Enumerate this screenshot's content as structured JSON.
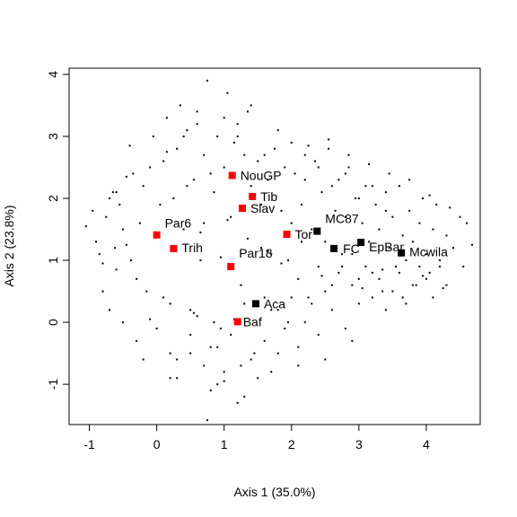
{
  "chart_data": {
    "type": "scatter",
    "xlabel": "Axis 1 (35.0%)",
    "ylabel": "Axis 2 (23.8%)",
    "xlim": [
      -1.3,
      4.8
    ],
    "ylim": [
      -1.65,
      4.1
    ],
    "x_ticks": [
      -1,
      0,
      1,
      2,
      3,
      4
    ],
    "y_ticks": [
      -1,
      0,
      1,
      2,
      3,
      4
    ],
    "grid": false,
    "colors": {
      "highlight": "#ff0000",
      "reference": "#000000",
      "points": "#000000"
    },
    "highlighted_points": [
      {
        "label": "NouGP",
        "x": 1.12,
        "y": 2.37
      },
      {
        "label": "Tib",
        "x": 1.42,
        "y": 2.03
      },
      {
        "label": "Slav",
        "x": 1.27,
        "y": 1.84
      },
      {
        "label": "Par6",
        "x": 0.0,
        "y": 1.41
      },
      {
        "label": "Trih",
        "x": 0.25,
        "y": 1.19
      },
      {
        "label": "Par18",
        "x": 1.1,
        "y": 0.9
      },
      {
        "label": "Tor",
        "x": 1.93,
        "y": 1.42
      },
      {
        "label": "Baf",
        "x": 1.2,
        "y": 0.01
      }
    ],
    "reference_points": [
      {
        "label": "MC87",
        "x": 2.38,
        "y": 1.47
      },
      {
        "label": "FC",
        "x": 2.63,
        "y": 1.19
      },
      {
        "label": "EpBar",
        "x": 3.03,
        "y": 1.29
      },
      {
        "label": "Mcwila",
        "x": 3.63,
        "y": 1.12
      },
      {
        "label": "Aca",
        "x": 1.47,
        "y": 0.3
      }
    ],
    "background_points": {
      "x": [
        -1.05,
        -0.95,
        -0.9,
        -0.85,
        -0.8,
        -0.75,
        -0.7,
        -0.65,
        -0.62,
        -0.6,
        -0.55,
        -0.5,
        -0.45,
        -0.4,
        -0.38,
        -0.3,
        -0.25,
        -0.2,
        -0.15,
        -0.1,
        -0.05,
        0.05,
        0.1,
        0.15,
        0.2,
        0.25,
        0.3,
        0.35,
        0.4,
        0.45,
        0.5,
        0.55,
        0.6,
        0.65,
        0.7,
        0.75,
        0.8,
        0.85,
        0.9,
        0.95,
        1.0,
        1.05,
        1.1,
        1.15,
        1.2,
        1.25,
        1.3,
        1.35,
        1.4,
        1.45,
        1.5,
        1.55,
        1.6,
        1.65,
        1.7,
        1.75,
        1.8,
        1.85,
        1.9,
        1.95,
        2.0,
        2.05,
        2.1,
        2.15,
        2.2,
        2.25,
        2.3,
        2.35,
        2.4,
        2.45,
        2.5,
        2.55,
        2.6,
        2.65,
        2.7,
        2.75,
        2.8,
        2.85,
        2.9,
        2.95,
        3.0,
        3.05,
        3.1,
        3.15,
        3.2,
        3.25,
        3.3,
        3.35,
        3.4,
        3.45,
        3.5,
        3.55,
        3.6,
        3.65,
        3.7,
        3.75,
        3.8,
        3.85,
        3.9,
        3.95,
        4.0,
        4.05,
        4.1,
        4.15,
        4.2,
        4.3,
        4.4,
        4.5,
        4.6,
        4.68,
        -0.8,
        -0.7,
        -0.5,
        -0.3,
        -0.2,
        0.0,
        0.1,
        0.2,
        0.3,
        0.5,
        0.6,
        0.7,
        0.8,
        0.9,
        1.0,
        1.1,
        1.2,
        1.3,
        1.4,
        1.5,
        1.6,
        1.7,
        1.8,
        1.9,
        2.0,
        2.1,
        2.2,
        2.3,
        2.4,
        2.5,
        2.6,
        2.7,
        2.8,
        2.9,
        3.0,
        3.1,
        3.2,
        3.3,
        3.4,
        3.5,
        3.6,
        3.7,
        3.8,
        3.9,
        4.0,
        4.1,
        4.2,
        4.3,
        0.4,
        0.6,
        0.8,
        1.0,
        1.2,
        1.4,
        1.6,
        1.8,
        2.0,
        2.2,
        2.4,
        2.6,
        2.8,
        3.0,
        3.2,
        3.4,
        0.2,
        0.5,
        0.9,
        1.3,
        1.7,
        2.1,
        2.5,
        2.9,
        0.75,
        1.0,
        1.25,
        0.85,
        1.15,
        0.55,
        0.3,
        -0.1,
        -0.45,
        0.65,
        0.95,
        1.55,
        1.85,
        2.15,
        2.45,
        2.75,
        3.05,
        3.35,
        3.65,
        3.95,
        4.25,
        4.55,
        -0.6,
        -0.35,
        0.15,
        0.45,
        0.7,
        1.05,
        1.35,
        1.65,
        1.95,
        2.25,
        2.55,
        2.85,
        3.15,
        3.45,
        3.75,
        4.05,
        4.35
      ],
      "y": [
        1.55,
        1.8,
        1.3,
        1.1,
        0.95,
        1.7,
        2.0,
        2.1,
        1.2,
        0.85,
        1.9,
        1.5,
        2.35,
        2.85,
        1.0,
        0.7,
        1.6,
        2.2,
        0.5,
        2.5,
        3.0,
        1.9,
        2.6,
        3.3,
        0.3,
        2.0,
        2.8,
        3.5,
        1.5,
        3.1,
        0.2,
        2.3,
        3.4,
        1.0,
        2.7,
        3.9,
        -0.4,
        2.1,
        3.0,
        -0.1,
        2.5,
        3.7,
        1.7,
        2.9,
        3.2,
        0.6,
        2.7,
        3.4,
        2.2,
        -0.5,
        2.6,
        1.9,
        0.4,
        2.3,
        1.1,
        2.8,
        0.2,
        1.8,
        2.5,
        0.0,
        1.6,
        2.4,
        0.7,
        1.9,
        2.3,
        0.4,
        1.5,
        2.6,
        0.9,
        2.1,
        1.3,
        2.8,
        0.6,
        1.8,
        2.3,
        0.9,
        1.7,
        2.5,
        1.1,
        2.0,
        0.7,
        1.6,
        2.2,
        1.3,
        0.8,
        1.9,
        1.5,
        0.5,
        2.1,
        1.2,
        1.7,
        0.9,
        2.2,
        1.4,
        1.0,
        1.8,
        1.3,
        0.6,
        1.6,
        2.0,
        1.1,
        0.8,
        1.5,
        1.9,
        1.0,
        1.4,
        1.2,
        1.7,
        1.6,
        1.25,
        0.5,
        0.2,
        0.0,
        -0.3,
        -0.6,
        -0.1,
        0.4,
        -0.5,
        -0.9,
        -0.2,
        0.1,
        -0.7,
        -1.1,
        -0.4,
        -0.8,
        -0.2,
        -1.3,
        0.3,
        -0.6,
        -0.9,
        -0.3,
        0.2,
        -0.5,
        -0.1,
        0.4,
        -0.7,
        0.0,
        0.3,
        -0.2,
        0.5,
        0.2,
        0.8,
        -0.1,
        0.6,
        0.3,
        0.9,
        0.4,
        0.7,
        0.2,
        0.5,
        0.8,
        0.3,
        0.6,
        0.9,
        0.7,
        0.4,
        0.9,
        0.6,
        3.0,
        3.2,
        2.4,
        3.3,
        3.0,
        3.5,
        2.7,
        3.1,
        2.9,
        2.7,
        2.5,
        2.2,
        2.4,
        2.0,
        2.2,
        1.8,
        -0.9,
        -0.5,
        -1.0,
        -1.2,
        -0.8,
        -0.4,
        -0.6,
        -0.3,
        -1.58,
        -0.95,
        -0.7,
        0.0,
        0.05,
        0.15,
        -0.6,
        0.05,
        1.25,
        1.45,
        1.05,
        1.2,
        0.95,
        1.3,
        0.75,
        1.1,
        0.55,
        0.85,
        0.4,
        0.75,
        0.55,
        0.9,
        2.1,
        2.4,
        2.75,
        2.2,
        1.6,
        1.65,
        1.35,
        1.15,
        1.0,
        2.85,
        2.95,
        2.7,
        2.55,
        2.4,
        2.3,
        2.05,
        1.85
      ]
    }
  }
}
